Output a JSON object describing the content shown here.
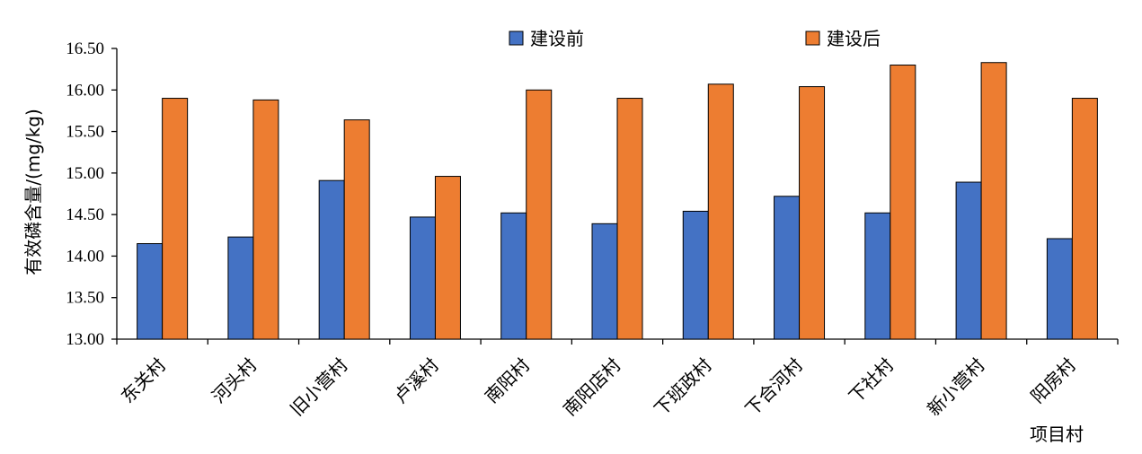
{
  "chart_data": {
    "type": "bar",
    "title": "",
    "ylabel": "有效磷含量/(mg/kg)",
    "xlabel": "项目村",
    "ylim": [
      13.0,
      16.5
    ],
    "yticks": [
      "13.00",
      "13.50",
      "14.00",
      "14.50",
      "15.00",
      "15.50",
      "16.00",
      "16.50"
    ],
    "categories": [
      "东关村",
      "河头村",
      "旧小营村",
      "卢溪村",
      "南阳村",
      "南阳店村",
      "下班政村",
      "下合河村",
      "下社村",
      "新小营村",
      "阳房村"
    ],
    "series": [
      {
        "name": "建设前",
        "color": "#4472C4",
        "values": [
          14.15,
          14.23,
          14.91,
          14.47,
          14.52,
          14.39,
          14.54,
          14.72,
          14.52,
          14.89,
          14.21
        ]
      },
      {
        "name": "建设后",
        "color": "#ED7D31",
        "values": [
          15.9,
          15.88,
          15.64,
          14.96,
          16.0,
          15.9,
          16.07,
          16.04,
          16.3,
          16.33,
          15.9
        ]
      }
    ],
    "legend_position": "top",
    "grid": false
  }
}
